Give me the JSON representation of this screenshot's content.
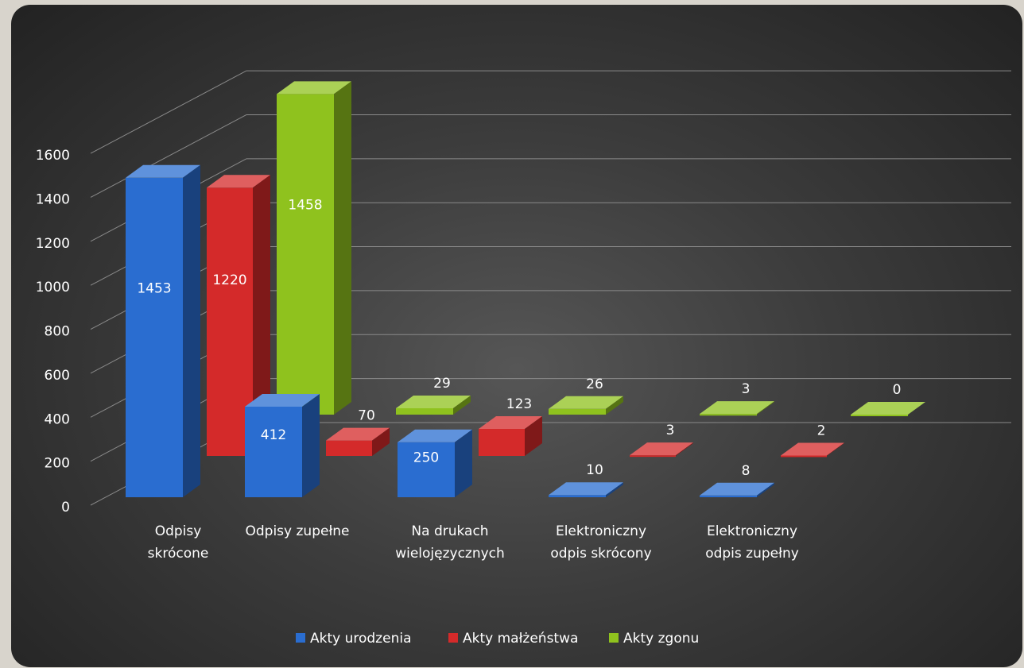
{
  "chart_data": {
    "type": "bar",
    "title": "",
    "xlabel": "",
    "ylabel": "",
    "ylim": [
      0,
      1600
    ],
    "yticks": [
      0,
      200,
      400,
      600,
      800,
      1000,
      1200,
      1400,
      1600
    ],
    "categories": [
      [
        "Odpisy",
        "skrócone"
      ],
      [
        "Odpisy zupełne"
      ],
      [
        "Na drukach",
        "wielojęzycznych"
      ],
      [
        "Elektroniczny",
        "odpis skrócony"
      ],
      [
        "Elektroniczny",
        "odpis zupełny"
      ]
    ],
    "series": [
      {
        "name": "Akty urodzenia",
        "color": "#2a6dd0",
        "values": [
          1453,
          412,
          250,
          10,
          8
        ]
      },
      {
        "name": "Akty małżeństwa",
        "color": "#d42a2a",
        "values": [
          1220,
          70,
          123,
          3,
          2
        ]
      },
      {
        "name": "Akty zgonu",
        "color": "#8fc21e",
        "values": [
          1458,
          29,
          26,
          3,
          0
        ]
      }
    ],
    "grid": true,
    "legend": "bottom",
    "three_d": true
  }
}
